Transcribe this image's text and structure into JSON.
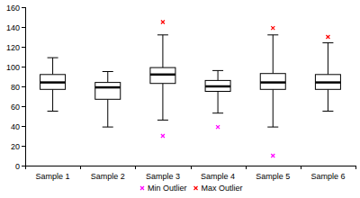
{
  "chart_data": {
    "type": "box",
    "categories": [
      "Sample 1",
      "Sample 2",
      "Sample 3",
      "Sample 4",
      "Sample 5",
      "Sample 6"
    ],
    "min": [
      55,
      39,
      46,
      53,
      39,
      55
    ],
    "q1": [
      77,
      67,
      83,
      75,
      77,
      77
    ],
    "median": [
      84,
      79,
      92,
      80,
      84,
      84
    ],
    "q3": [
      92,
      84,
      99,
      86,
      93,
      92
    ],
    "max": [
      109,
      95,
      132,
      96,
      132,
      124
    ],
    "series": [
      {
        "name": "Min Outlier",
        "color": "#ff00ff",
        "marker": "x",
        "values": [
          null,
          null,
          30,
          39,
          10,
          null
        ]
      },
      {
        "name": "Max Outlier",
        "color": "#ff0000",
        "marker": "x",
        "values": [
          null,
          null,
          145,
          null,
          139,
          130
        ]
      }
    ],
    "ylim": [
      0,
      160
    ],
    "yticks": [
      0,
      20,
      40,
      60,
      80,
      100,
      120,
      140,
      160
    ],
    "grid": false,
    "legend": "bottom"
  }
}
